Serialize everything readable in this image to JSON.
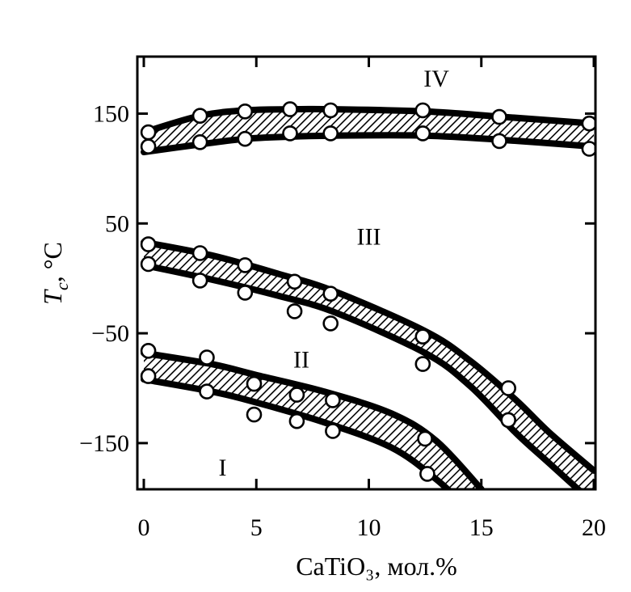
{
  "chart_data": {
    "type": "line",
    "title": "",
    "xlabel": "CaTiO₃, мол.%",
    "ylabel_main": "T",
    "ylabel_sub": "c",
    "ylabel_unit": ", °C",
    "xlim": [
      0,
      20
    ],
    "ylim": [
      -200,
      200
    ],
    "x_ticks": [
      0,
      5,
      10,
      15,
      20
    ],
    "x_tick_labels": [
      "0",
      "5",
      "10",
      "15",
      "20"
    ],
    "y_ticks": [
      150,
      50,
      -50,
      -150
    ],
    "y_tick_labels": [
      "150",
      "50",
      "−50",
      "−150"
    ],
    "grid": false,
    "legend": "none",
    "region_labels": [
      {
        "text": "IV",
        "x": 13.0,
        "y": 182
      },
      {
        "text": "III",
        "x": 10.0,
        "y": 38
      },
      {
        "text": "II",
        "x": 7.0,
        "y": -74
      },
      {
        "text": "I",
        "x": 3.5,
        "y": -172
      }
    ],
    "bands": [
      {
        "upper_curve": {
          "x": [
            0,
            2.5,
            4.5,
            6.5,
            8.5,
            12.5,
            16,
            20
          ],
          "y": [
            133,
            148,
            153,
            154,
            154,
            152,
            147,
            141
          ]
        },
        "lower_curve": {
          "x": [
            0,
            2.5,
            4.5,
            6.5,
            8.5,
            12.5,
            16,
            20
          ],
          "y": [
            115,
            122,
            127,
            129,
            130,
            130,
            126,
            120
          ]
        },
        "upper_points": {
          "x": [
            0.2,
            2.5,
            4.5,
            6.5,
            8.3,
            12.4,
            15.8,
            19.8
          ],
          "y": [
            133,
            148,
            152,
            154,
            153,
            153,
            147,
            141
          ]
        },
        "lower_points": {
          "x": [
            0.2,
            2.5,
            4.5,
            6.5,
            8.3,
            12.4,
            15.8,
            19.8
          ],
          "y": [
            120,
            124,
            127,
            132,
            132,
            132,
            125,
            118
          ]
        }
      },
      {
        "upper_curve": {
          "x": [
            0,
            3,
            6,
            8.5,
            12.5,
            14.5,
            16.5,
            18,
            20
          ],
          "y": [
            33,
            21,
            4,
            -12,
            -48,
            -75,
            -110,
            -140,
            -175
          ]
        },
        "lower_curve": {
          "x": [
            0,
            3,
            6,
            8.5,
            12.5,
            14.5,
            16.5,
            18,
            20
          ],
          "y": [
            12,
            -1,
            -16,
            -31,
            -68,
            -98,
            -140,
            -168,
            -205
          ]
        },
        "upper_points": {
          "x": [
            0.2,
            2.5,
            4.5,
            6.7,
            8.3,
            12.4,
            16.2
          ],
          "y": [
            31,
            23,
            12,
            -3,
            -14,
            -53,
            -100
          ]
        },
        "lower_points": {
          "x": [
            0.2,
            2.5,
            4.5,
            6.7,
            8.3,
            12.4,
            16.2
          ],
          "y": [
            13,
            -2,
            -13,
            -30,
            -41,
            -78,
            -129
          ]
        }
      },
      {
        "upper_curve": {
          "x": [
            0,
            3,
            5,
            8,
            11,
            13,
            15
          ],
          "y": [
            -68,
            -78,
            -88,
            -103,
            -123,
            -148,
            -192
          ]
        },
        "lower_curve": {
          "x": [
            0,
            3,
            5,
            8,
            11,
            13,
            14.5
          ],
          "y": [
            -92,
            -103,
            -113,
            -131,
            -154,
            -183,
            -212
          ]
        },
        "upper_points": {
          "x": [
            0.2,
            2.8,
            4.9,
            6.8,
            8.4,
            12.5
          ],
          "y": [
            -66,
            -72,
            -96,
            -106,
            -111,
            -146
          ]
        },
        "lower_points": {
          "x": [
            0.2,
            2.8,
            4.9,
            6.8,
            8.4,
            12.6
          ],
          "y": [
            -89,
            -103,
            -124,
            -130,
            -139,
            -178
          ]
        }
      }
    ],
    "colors": {
      "line": "#000000",
      "hatch": "#000000",
      "marker_fill": "#ffffff",
      "background": "#ffffff"
    }
  }
}
